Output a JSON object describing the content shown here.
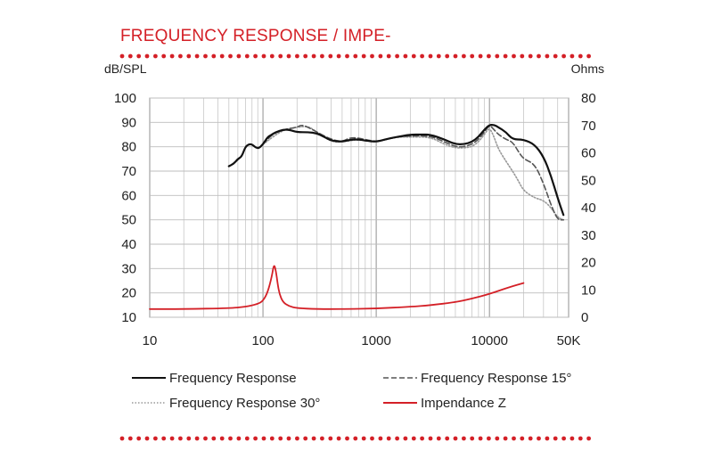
{
  "title": "FREQUENCY RESPONSE / IMPE-",
  "colors": {
    "accent": "#d42027",
    "frequency_response": "#111111",
    "response_15": "#555555",
    "response_30": "#999999",
    "impedance": "#d42027",
    "grid": "#c8c8c8"
  },
  "chart_data": {
    "type": "line",
    "xscale": "log",
    "xlim": [
      10,
      50000
    ],
    "ylim": [
      10,
      100
    ],
    "y2lim": [
      0,
      80
    ],
    "ylabel": "dB/SPL",
    "y2label": "Ohms",
    "x_ticks": [
      "10",
      "100",
      "1000",
      "10000",
      "50K"
    ],
    "x_tick_values": [
      10,
      100,
      1000,
      10000,
      50000
    ],
    "y_ticks": [
      10,
      20,
      30,
      40,
      50,
      60,
      70,
      80,
      90,
      100
    ],
    "y2_ticks": [
      0,
      10,
      20,
      30,
      40,
      50,
      60,
      70,
      80
    ],
    "grid": true,
    "legend": "bottom",
    "series": [
      {
        "name": "Frequency Response",
        "axis": "left",
        "style": "solid",
        "x": [
          50,
          55,
          60,
          65,
          70,
          75,
          80,
          90,
          100,
          110,
          120,
          130,
          150,
          170,
          200,
          250,
          300,
          350,
          400,
          500,
          600,
          700,
          800,
          1000,
          1200,
          1500,
          2000,
          2500,
          3000,
          4000,
          5000,
          6000,
          7000,
          8000,
          9000,
          10000,
          11000,
          12000,
          14000,
          16000,
          20000,
          25000,
          30000,
          35000,
          40000,
          45000
        ],
        "y": [
          72,
          73,
          75,
          76,
          80,
          81,
          81,
          79,
          81,
          84,
          85,
          86,
          87,
          87,
          86,
          86,
          85.5,
          84,
          82.5,
          82,
          83,
          83,
          82.5,
          82,
          83,
          84,
          85,
          85,
          85,
          83,
          81,
          81,
          82,
          84,
          87,
          89,
          89,
          88,
          86,
          83,
          83,
          81,
          76,
          68,
          59,
          52
        ]
      },
      {
        "name": "Frequency Response 15°",
        "axis": "left",
        "style": "dashed",
        "x": [
          100,
          120,
          150,
          200,
          220,
          250,
          300,
          400,
          500,
          600,
          800,
          1000,
          1500,
          2000,
          3000,
          4000,
          5000,
          6000,
          7000,
          8000,
          9000,
          10000,
          11000,
          12000,
          14000,
          16000,
          18000,
          20000,
          25000,
          30000,
          35000,
          40000,
          45000
        ],
        "y": [
          81,
          85,
          87,
          88,
          89,
          88,
          86,
          83,
          82,
          84,
          83,
          82,
          84,
          84.5,
          84.5,
          82,
          80,
          80,
          81,
          83,
          86,
          89,
          87,
          85,
          83,
          82,
          78,
          75,
          73,
          65,
          56,
          50,
          50
        ]
      },
      {
        "name": "Frequency Response 30°",
        "axis": "left",
        "style": "dotted",
        "x": [
          100,
          150,
          200,
          250,
          300,
          400,
          500,
          700,
          1000,
          1500,
          2000,
          3000,
          4000,
          5000,
          6000,
          7000,
          8000,
          9000,
          10000,
          11000,
          12000,
          14000,
          16000,
          18000,
          20000,
          25000,
          30000,
          35000,
          40000,
          45000
        ],
        "y": [
          81,
          87,
          88,
          88.5,
          86,
          82,
          82,
          83,
          82,
          84,
          84,
          84,
          81,
          79.5,
          79.5,
          80,
          82,
          85,
          88,
          84,
          79,
          74,
          70,
          66,
          62,
          59,
          58,
          55,
          51,
          50
        ]
      },
      {
        "name": "Impendance Z",
        "axis": "right",
        "style": "solid",
        "x": [
          10,
          20,
          50,
          70,
          90,
          100,
          110,
          120,
          125,
          130,
          135,
          140,
          150,
          170,
          200,
          300,
          500,
          1000,
          2000,
          3000,
          5000,
          7000,
          10000,
          15000,
          20000
        ],
        "y": [
          3,
          3,
          3.3,
          3.8,
          4.8,
          6,
          9,
          15,
          19.5,
          17,
          12,
          8.5,
          5.5,
          4,
          3.3,
          3,
          3,
          3.2,
          3.8,
          4.4,
          5.5,
          6.8,
          8.5,
          11,
          12.5
        ]
      }
    ]
  },
  "legend_items": [
    {
      "label": "Frequency Response",
      "style": "solid",
      "color": "#111111"
    },
    {
      "label": "Frequency Response 15°",
      "style": "dashed",
      "color": "#555555"
    },
    {
      "label": "Frequency Response 30°",
      "style": "dotted",
      "color": "#999999"
    },
    {
      "label": "Impendance Z",
      "style": "solid",
      "color": "#d42027"
    }
  ]
}
